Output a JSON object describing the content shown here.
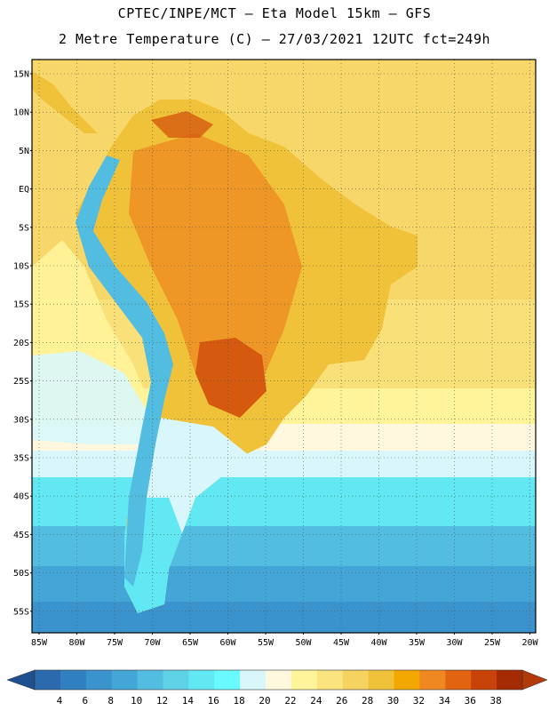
{
  "header": {
    "line1": "CPTEC/INPE/MCT –  Eta Model 15km – GFS",
    "line2": "2 Metre Temperature (C) – 27/03/2021 12UTC fct=249h"
  },
  "axes": {
    "lat_labels": [
      "15N",
      "10N",
      "5N",
      "EQ",
      "5S",
      "10S",
      "15S",
      "20S",
      "25S",
      "30S",
      "35S",
      "40S",
      "45S",
      "50S",
      "55S"
    ],
    "lon_labels": [
      "85W",
      "80W",
      "75W",
      "70W",
      "65W",
      "60W",
      "55W",
      "50W",
      "45W",
      "40W",
      "35W",
      "30W",
      "25W",
      "20W"
    ]
  },
  "colorbar": {
    "labels": [
      "4",
      "6",
      "8",
      "10",
      "12",
      "14",
      "16",
      "18",
      "20",
      "22",
      "24",
      "26",
      "28",
      "30",
      "32",
      "34",
      "36",
      "38"
    ],
    "colors": [
      "#2c6aae",
      "#2f7fc1",
      "#3a93cc",
      "#43a6d6",
      "#52bde0",
      "#5fd2e8",
      "#61e8f2",
      "#69faff",
      "#d9f7fb",
      "#fff8df",
      "#fff49a",
      "#fbe47f",
      "#f6d361",
      "#f0c23a",
      "#f2a800",
      "#ef8820",
      "#e26310",
      "#c9420a",
      "#a52b05"
    ],
    "low_arrow_color": "#1f4f8f",
    "high_arrow_color": "#b23a0a"
  },
  "map_colors": {
    "ocean_warm": "#f7d76a",
    "ocean_mild": "#fff49a",
    "ocean_cool": "#fff8df",
    "ocean_cold": "#d9f7fb",
    "ocean_colder": "#61e8f2",
    "ocean_coldest": "#43a6d6",
    "land_hot": "#ef8820",
    "land_hotter": "#d55a10",
    "land_warm": "#f0c23a",
    "andes_cold": "#52bde0"
  }
}
